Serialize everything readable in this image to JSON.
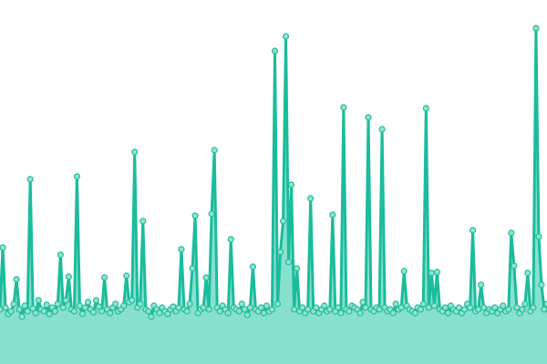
{
  "chart_data": {
    "type": "area",
    "title": "",
    "xlabel": "",
    "ylabel": "",
    "grid": false,
    "axes_visible": false,
    "ylim": [
      0,
      400
    ],
    "colors": {
      "line": "#1abc9c",
      "fill": "#88e0cf",
      "marker_fill": "#8fe3d1",
      "marker_stroke": "#22bd98"
    },
    "values": [
      60,
      128,
      62,
      55,
      58,
      66,
      93,
      60,
      52,
      64,
      58,
      203,
      61,
      56,
      70,
      60,
      58,
      65,
      55,
      62,
      58,
      66,
      120,
      62,
      70,
      96,
      60,
      58,
      206,
      64,
      55,
      62,
      68,
      60,
      57,
      70,
      63,
      58,
      95,
      60,
      56,
      62,
      66,
      58,
      60,
      64,
      97,
      68,
      70,
      233,
      62,
      66,
      157,
      60,
      58,
      52,
      64,
      60,
      56,
      62,
      58,
      55,
      60,
      63,
      58,
      62,
      126,
      60,
      58,
      66,
      105,
      163,
      56,
      60,
      62,
      95,
      60,
      165,
      235,
      62,
      58,
      64,
      60,
      56,
      137,
      62,
      60,
      58,
      66,
      60,
      54,
      62,
      107,
      60,
      58,
      62,
      56,
      64,
      58,
      60,
      344,
      66,
      123,
      157,
      360,
      112,
      197,
      60,
      105,
      58,
      62,
      56,
      60,
      182,
      58,
      62,
      56,
      60,
      64,
      58,
      60,
      164,
      58,
      62,
      56,
      282,
      60,
      58,
      64,
      62,
      60,
      56,
      68,
      62,
      271,
      60,
      58,
      62,
      60,
      258,
      62,
      58,
      60,
      56,
      66,
      60,
      62,
      102,
      64,
      60,
      58,
      56,
      62,
      60,
      66,
      281,
      62,
      100,
      64,
      101,
      60,
      58,
      62,
      56,
      64,
      60,
      58,
      62,
      56,
      60,
      66,
      62,
      147,
      58,
      60,
      87,
      62,
      56,
      60,
      58,
      62,
      56,
      60,
      64,
      58,
      60,
      144,
      108,
      62,
      56,
      60,
      66,
      100,
      58,
      62,
      369,
      140,
      87,
      60,
      66
    ]
  }
}
